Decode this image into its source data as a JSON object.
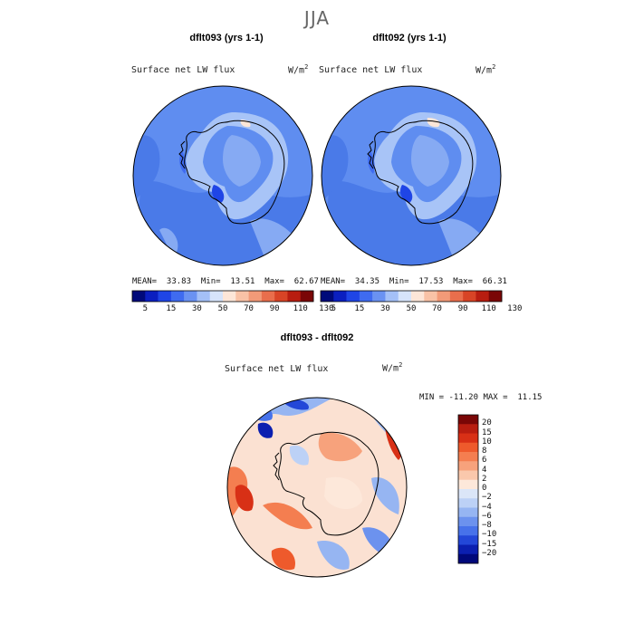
{
  "figure": {
    "season": "JJA",
    "variable": "Surface net LW flux",
    "units_base": "W/m",
    "units_exp": "2"
  },
  "panels": [
    {
      "title": "dflt093 (yrs 1-1)",
      "stats_text": "MEAN=  33.83  Min=  13.51  Max=  62.67",
      "mean": 33.83,
      "min": 13.51,
      "max": 62.67
    },
    {
      "title": "dflt092 (yrs 1-1)",
      "stats_text": "MEAN=  34.35  Min=  17.53  Max=  66.31",
      "mean": 34.35,
      "min": 17.53,
      "max": 66.31
    }
  ],
  "abs_colorbar": {
    "labels": [
      "5",
      "15",
      "30",
      "50",
      "70",
      "90",
      "110",
      "130"
    ],
    "colors": [
      "#000a7a",
      "#0b1fc0",
      "#1f45e6",
      "#3f6bf0",
      "#6a92f2",
      "#a4c0f7",
      "#d6e4fb",
      "#fde6d8",
      "#f9c2a6",
      "#f29a78",
      "#e96e4c",
      "#d84426",
      "#b81d10",
      "#7a0606"
    ]
  },
  "difference": {
    "title": "dflt093 - dflt092",
    "stats_text": "MIN = -11.20 MAX =  11.15",
    "min": -11.2,
    "max": 11.15,
    "colorbar_labels": [
      "20",
      "15",
      "10",
      "8",
      "6",
      "4",
      "2",
      "0",
      "−2",
      "−4",
      "−6",
      "−8",
      "−10",
      "−15",
      "−20"
    ],
    "colorbar_colors": [
      "#7a0606",
      "#b81d10",
      "#d83016",
      "#ee5a2c",
      "#f47e50",
      "#f7a27c",
      "#fac8ac",
      "#fde8da",
      "#dbe6f8",
      "#bcd1f6",
      "#96b5f2",
      "#6c92ee",
      "#4772ea",
      "#2347d8",
      "#0b1fb0",
      "#00087a"
    ]
  }
}
